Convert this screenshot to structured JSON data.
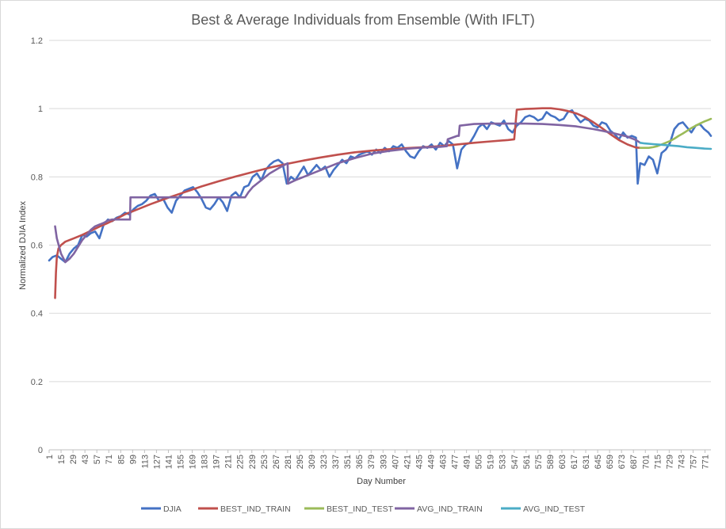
{
  "chart_data": {
    "type": "line",
    "title": "Best & Average Individuals from Ensemble (With IFLT)",
    "xlabel": "Day Number",
    "ylabel": "Normalized DJIA Index",
    "ylim": [
      0,
      1.2
    ],
    "xlim": [
      1,
      778
    ],
    "y_ticks": [
      "0",
      "0.2",
      "0.4",
      "0.6",
      "0.8",
      "1",
      "1.2"
    ],
    "x_ticks": [
      "1",
      "15",
      "29",
      "43",
      "57",
      "71",
      "85",
      "99",
      "113",
      "127",
      "141",
      "155",
      "169",
      "183",
      "197",
      "211",
      "225",
      "239",
      "253",
      "267",
      "281",
      "295",
      "309",
      "323",
      "337",
      "351",
      "365",
      "379",
      "393",
      "407",
      "421",
      "435",
      "449",
      "463",
      "477",
      "491",
      "505",
      "519",
      "533",
      "547",
      "561",
      "575",
      "589",
      "603",
      "617",
      "631",
      "645",
      "659",
      "673",
      "687",
      "701",
      "715",
      "729",
      "743",
      "757",
      "771"
    ],
    "grid": "horizontal",
    "legend_position": "bottom",
    "series": [
      {
        "name": "DJIA",
        "color": "#4472C4",
        "x": [
          1,
          5,
          10,
          15,
          20,
          25,
          30,
          35,
          40,
          45,
          50,
          55,
          60,
          65,
          70,
          75,
          80,
          85,
          90,
          95,
          100,
          105,
          110,
          115,
          120,
          125,
          130,
          135,
          140,
          145,
          150,
          155,
          160,
          165,
          170,
          175,
          180,
          185,
          190,
          195,
          200,
          205,
          210,
          215,
          220,
          225,
          230,
          235,
          240,
          245,
          250,
          255,
          260,
          265,
          270,
          275,
          280,
          285,
          290,
          295,
          300,
          305,
          310,
          315,
          320,
          325,
          330,
          335,
          340,
          345,
          350,
          355,
          360,
          365,
          370,
          375,
          380,
          385,
          390,
          395,
          400,
          405,
          410,
          415,
          420,
          425,
          430,
          435,
          440,
          445,
          450,
          455,
          460,
          465,
          470,
          475,
          480,
          485,
          490,
          495,
          500,
          505,
          510,
          515,
          520,
          525,
          530,
          535,
          540,
          545,
          550,
          555,
          560,
          565,
          570,
          575,
          580,
          585,
          590,
          595,
          600,
          605,
          610,
          615,
          620,
          625,
          630,
          635,
          640,
          645,
          650,
          655,
          660,
          665,
          670,
          675,
          680,
          685,
          690,
          692,
          695,
          700,
          705,
          710,
          715,
          720,
          725,
          730,
          735,
          740,
          745,
          750,
          755,
          760,
          765,
          770,
          775,
          778
        ],
        "y": [
          0.555,
          0.565,
          0.57,
          0.56,
          0.55,
          0.575,
          0.59,
          0.6,
          0.63,
          0.625,
          0.635,
          0.64,
          0.62,
          0.66,
          0.675,
          0.67,
          0.68,
          0.685,
          0.695,
          0.69,
          0.705,
          0.715,
          0.72,
          0.73,
          0.745,
          0.75,
          0.73,
          0.735,
          0.71,
          0.695,
          0.73,
          0.745,
          0.76,
          0.765,
          0.77,
          0.755,
          0.735,
          0.71,
          0.705,
          0.72,
          0.74,
          0.725,
          0.7,
          0.745,
          0.755,
          0.74,
          0.77,
          0.775,
          0.8,
          0.81,
          0.79,
          0.82,
          0.835,
          0.845,
          0.85,
          0.84,
          0.78,
          0.8,
          0.79,
          0.81,
          0.83,
          0.805,
          0.82,
          0.835,
          0.82,
          0.83,
          0.8,
          0.82,
          0.835,
          0.85,
          0.84,
          0.86,
          0.855,
          0.865,
          0.87,
          0.875,
          0.865,
          0.88,
          0.87,
          0.885,
          0.875,
          0.89,
          0.885,
          0.895,
          0.875,
          0.86,
          0.855,
          0.875,
          0.89,
          0.885,
          0.895,
          0.88,
          0.9,
          0.89,
          0.905,
          0.895,
          0.825,
          0.88,
          0.895,
          0.9,
          0.92,
          0.945,
          0.955,
          0.94,
          0.96,
          0.955,
          0.95,
          0.965,
          0.94,
          0.93,
          0.95,
          0.96,
          0.975,
          0.98,
          0.975,
          0.965,
          0.97,
          0.99,
          0.98,
          0.975,
          0.965,
          0.97,
          0.99,
          0.995,
          0.975,
          0.96,
          0.97,
          0.965,
          0.95,
          0.945,
          0.96,
          0.955,
          0.935,
          0.925,
          0.91,
          0.93,
          0.915,
          0.92,
          0.915,
          0.78,
          0.84,
          0.835,
          0.86,
          0.85,
          0.81,
          0.87,
          0.88,
          0.9,
          0.94,
          0.955,
          0.96,
          0.945,
          0.93,
          0.95,
          0.955,
          0.94,
          0.93,
          0.92
        ]
      },
      {
        "name": "BEST_IND_TRAIN",
        "color": "#C0504D",
        "x": [
          8,
          9,
          10,
          12,
          15,
          20,
          30,
          40,
          50,
          60,
          70,
          80,
          90,
          100,
          120,
          140,
          160,
          180,
          200,
          220,
          240,
          260,
          280,
          300,
          320,
          340,
          360,
          380,
          400,
          420,
          440,
          460,
          480,
          500,
          520,
          540,
          547,
          550,
          560,
          570,
          580,
          590,
          600,
          610,
          620,
          630,
          640,
          650,
          660,
          670,
          680,
          690,
          695
        ],
        "y": [
          0.445,
          0.52,
          0.565,
          0.59,
          0.6,
          0.61,
          0.62,
          0.63,
          0.642,
          0.654,
          0.665,
          0.677,
          0.69,
          0.7,
          0.72,
          0.738,
          0.755,
          0.772,
          0.787,
          0.801,
          0.814,
          0.827,
          0.838,
          0.848,
          0.857,
          0.865,
          0.872,
          0.877,
          0.881,
          0.884,
          0.887,
          0.89,
          0.895,
          0.9,
          0.904,
          0.908,
          0.91,
          0.997,
          0.999,
          1.0,
          1.001,
          1.001,
          0.998,
          0.993,
          0.986,
          0.975,
          0.96,
          0.943,
          0.925,
          0.908,
          0.895,
          0.886,
          0.885
        ]
      },
      {
        "name": "BEST_IND_TEST",
        "color": "#9BBB59",
        "x": [
          695,
          700,
          705,
          710,
          715,
          720,
          725,
          730,
          735,
          740,
          745,
          750,
          755,
          760,
          765,
          770,
          775,
          778
        ],
        "y": [
          0.885,
          0.885,
          0.885,
          0.887,
          0.89,
          0.895,
          0.9,
          0.905,
          0.912,
          0.92,
          0.927,
          0.935,
          0.943,
          0.95,
          0.956,
          0.962,
          0.967,
          0.97
        ]
      },
      {
        "name": "AVG_IND_TRAIN",
        "color": "#8064A2",
        "x": [
          8,
          10,
          15,
          18,
          20,
          25,
          30,
          35,
          40,
          45,
          50,
          55,
          60,
          65,
          70,
          75,
          80,
          85,
          90,
          96,
          96.5,
          100,
          150,
          160,
          168,
          169,
          200,
          230,
          231,
          235,
          240,
          250,
          260,
          270,
          281,
          281.5,
          290,
          300,
          320,
          340,
          360,
          380,
          400,
          420,
          440,
          460,
          468,
          469,
          480,
          482,
          483,
          500,
          520,
          540,
          560,
          580,
          600,
          620,
          640,
          660,
          680,
          690,
          695
        ],
        "y": [
          0.655,
          0.62,
          0.575,
          0.56,
          0.55,
          0.56,
          0.575,
          0.595,
          0.615,
          0.63,
          0.645,
          0.655,
          0.66,
          0.665,
          0.672,
          0.675,
          0.675,
          0.675,
          0.675,
          0.675,
          0.74,
          0.74,
          0.74,
          0.74,
          0.74,
          0.74,
          0.74,
          0.74,
          0.74,
          0.755,
          0.77,
          0.79,
          0.81,
          0.825,
          0.84,
          0.78,
          0.79,
          0.8,
          0.82,
          0.84,
          0.855,
          0.868,
          0.876,
          0.882,
          0.886,
          0.888,
          0.89,
          0.91,
          0.92,
          0.92,
          0.95,
          0.955,
          0.956,
          0.956,
          0.956,
          0.955,
          0.952,
          0.948,
          0.94,
          0.93,
          0.918,
          0.908,
          0.9
        ]
      },
      {
        "name": "AVG_IND_TEST",
        "color": "#4BACC6",
        "x": [
          695,
          700,
          710,
          720,
          730,
          740,
          750,
          760,
          770,
          778
        ],
        "y": [
          0.9,
          0.898,
          0.896,
          0.894,
          0.892,
          0.89,
          0.887,
          0.885,
          0.883,
          0.882
        ]
      }
    ]
  }
}
